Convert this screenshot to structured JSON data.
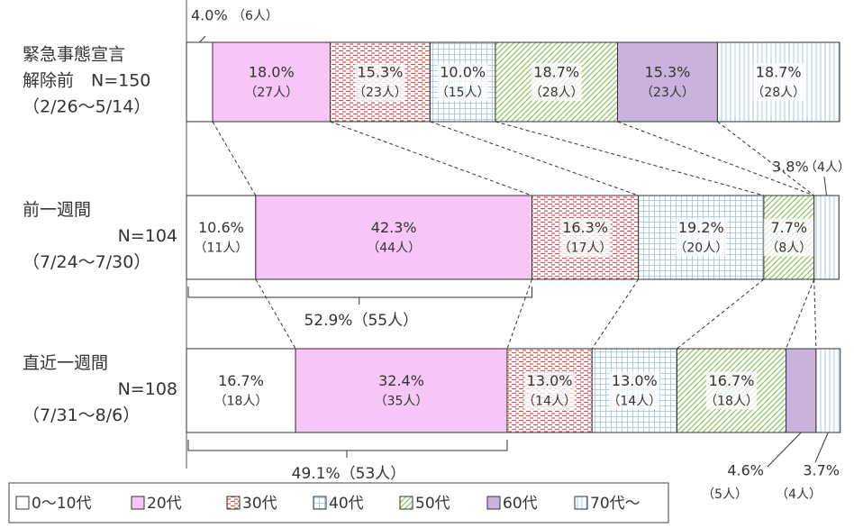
{
  "chart_data": {
    "type": "stacked-bar-100",
    "xlim": [
      0,
      100
    ],
    "categories": [
      [
        "緊急事態宣言",
        "解除前　N=150",
        "（2/26～5/14）"
      ],
      [
        "前一週間",
        "N=104",
        "（7/24～7/30）"
      ],
      [
        "直近一週間",
        "N=108",
        "（7/31～8/6）"
      ]
    ],
    "series": [
      {
        "name": "0～10代",
        "color": "#ffffff",
        "pattern": "solid",
        "values": [
          4.0,
          10.6,
          16.7
        ],
        "value_labels": [
          "4.0%",
          "10.6%",
          "16.7%"
        ],
        "counts": [
          6,
          11,
          18
        ],
        "count_labels": [
          "（6人）",
          "（11人）",
          "（18人）"
        ]
      },
      {
        "name": "20代",
        "color": "#f7c6f7",
        "pattern": "solid",
        "values": [
          18.0,
          42.3,
          32.4
        ],
        "value_labels": [
          "18.0%",
          "42.3%",
          "32.4%"
        ],
        "counts": [
          27,
          44,
          35
        ],
        "count_labels": [
          "（27人）",
          "（44人）",
          "（35人）"
        ]
      },
      {
        "name": "30代",
        "color": "#e05050",
        "pattern": "dash",
        "values": [
          15.3,
          16.3,
          13.0
        ],
        "value_labels": [
          "15.3%",
          "16.3%",
          "13.0%"
        ],
        "counts": [
          23,
          17,
          14
        ],
        "count_labels": [
          "（23人）",
          "（17人）",
          "（14人）"
        ]
      },
      {
        "name": "40代",
        "color": "#9cc3e0",
        "pattern": "grid",
        "values": [
          10.0,
          19.2,
          13.0
        ],
        "value_labels": [
          "10.0%",
          "19.2%",
          "13.0%"
        ],
        "counts": [
          15,
          20,
          14
        ],
        "count_labels": [
          "（15人）",
          "（20人）",
          "（14人）"
        ]
      },
      {
        "name": "50代",
        "color": "#8cc060",
        "pattern": "diag",
        "values": [
          18.7,
          7.7,
          16.7
        ],
        "value_labels": [
          "18.7%",
          "7.7%",
          "16.7%"
        ],
        "counts": [
          28,
          8,
          18
        ],
        "count_labels": [
          "（28人）",
          "（8人）",
          "（18人）"
        ]
      },
      {
        "name": "60代",
        "color": "#c9b3dc",
        "pattern": "solid",
        "values": [
          15.3,
          0,
          4.6
        ],
        "value_labels": [
          "15.3%",
          null,
          "4.6%"
        ],
        "counts": [
          23,
          null,
          5
        ],
        "count_labels": [
          "（23人）",
          null,
          "（5人）"
        ]
      },
      {
        "name": "70代～",
        "color": "#9cc3e0",
        "pattern": "vlines",
        "values": [
          18.7,
          3.8,
          3.7
        ],
        "value_labels": [
          "18.7%",
          "3.8%",
          "3.7%"
        ],
        "counts": [
          28,
          4,
          4
        ],
        "count_labels": [
          "（28人）",
          "（4人）",
          "（4人）"
        ]
      }
    ],
    "annotations": [
      "52.9%（55人）",
      "49.1%（53人）"
    ]
  }
}
